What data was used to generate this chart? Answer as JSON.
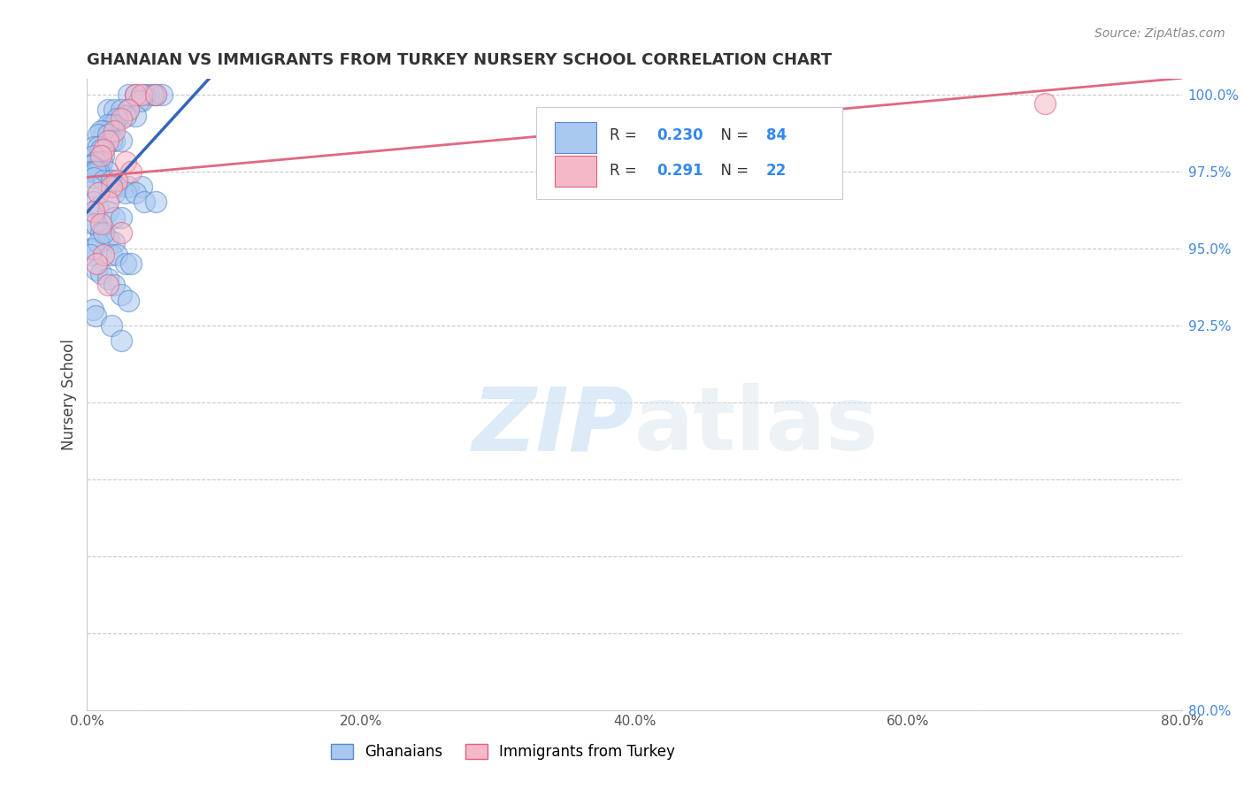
{
  "title": "GHANAIAN VS IMMIGRANTS FROM TURKEY NURSERY SCHOOL CORRELATION CHART",
  "source_text": "Source: ZipAtlas.com",
  "ylabel": "Nursery School",
  "xlim": [
    0.0,
    80.0
  ],
  "ylim": [
    80.0,
    100.5
  ],
  "xticks": [
    0.0,
    20.0,
    40.0,
    60.0,
    80.0
  ],
  "yticks": [
    80.0,
    82.5,
    85.0,
    87.5,
    90.0,
    92.5,
    95.0,
    97.5,
    100.0
  ],
  "ytick_labels_right": [
    "80.0%",
    "",
    "",
    "",
    "",
    "92.5%",
    "95.0%",
    "97.5%",
    "100.0%"
  ],
  "xtick_labels": [
    "0.0%",
    "20.0%",
    "40.0%",
    "60.0%",
    "80.0%"
  ],
  "blue_color": "#a8c8f0",
  "pink_color": "#f5b8c8",
  "blue_edge_color": "#5588cc",
  "pink_edge_color": "#e06080",
  "blue_line_color": "#3366bb",
  "pink_line_color": "#e06880",
  "legend_R_blue": "0.230",
  "legend_N_blue": "84",
  "legend_R_pink": "0.291",
  "legend_N_pink": "22",
  "legend_label_blue": "Ghanaians",
  "legend_label_pink": "Immigrants from Turkey",
  "watermark_zip": "ZIP",
  "watermark_atlas": "atlas",
  "blue_x": [
    3.0,
    3.5,
    4.5,
    5.0,
    5.5,
    4.2,
    4.8,
    4.0,
    3.8,
    1.5,
    2.0,
    2.5,
    3.0,
    3.5,
    2.8,
    2.2,
    1.8,
    2.0,
    1.5,
    1.2,
    1.0,
    0.8,
    1.5,
    2.0,
    1.8,
    2.5,
    0.5,
    0.8,
    1.0,
    1.2,
    0.5,
    0.7,
    0.9,
    1.1,
    0.6,
    0.4,
    0.3,
    0.2,
    0.5,
    1.0,
    1.5,
    0.8,
    0.6,
    0.5,
    1.2,
    1.8,
    2.2,
    3.0,
    4.0,
    0.3,
    2.0,
    2.8,
    3.5,
    4.2,
    5.0,
    0.5,
    0.8,
    1.5,
    2.0,
    2.5,
    0.4,
    0.6,
    1.0,
    1.5,
    2.0,
    0.3,
    0.5,
    0.8,
    1.2,
    0.2,
    1.8,
    2.2,
    2.8,
    3.2,
    0.7,
    1.0,
    1.5,
    2.0,
    2.5,
    3.0,
    0.4,
    0.6,
    1.8,
    2.5
  ],
  "blue_y": [
    100.0,
    100.0,
    100.0,
    100.0,
    100.0,
    100.0,
    100.0,
    99.8,
    99.8,
    99.5,
    99.5,
    99.5,
    99.5,
    99.3,
    99.3,
    99.2,
    99.0,
    99.0,
    99.0,
    98.8,
    98.8,
    98.7,
    98.7,
    98.5,
    98.5,
    98.5,
    98.3,
    98.3,
    98.2,
    98.0,
    98.0,
    97.8,
    97.8,
    97.8,
    97.8,
    97.7,
    97.7,
    97.5,
    97.5,
    97.5,
    97.5,
    97.5,
    97.5,
    97.3,
    97.2,
    97.2,
    97.0,
    97.0,
    97.0,
    97.0,
    96.8,
    96.8,
    96.8,
    96.5,
    96.5,
    96.5,
    96.3,
    96.2,
    96.0,
    96.0,
    95.8,
    95.8,
    95.5,
    95.3,
    95.2,
    95.0,
    95.0,
    95.2,
    95.5,
    94.8,
    94.8,
    94.8,
    94.5,
    94.5,
    94.3,
    94.2,
    94.0,
    93.8,
    93.5,
    93.3,
    93.0,
    92.8,
    92.5,
    92.0
  ],
  "pink_x": [
    3.5,
    4.0,
    5.0,
    3.0,
    2.5,
    2.0,
    1.5,
    1.2,
    1.0,
    2.8,
    3.2,
    2.2,
    1.8,
    0.8,
    1.5,
    0.5,
    1.0,
    2.5,
    1.2,
    0.7,
    1.5,
    70.0
  ],
  "pink_y": [
    100.0,
    100.0,
    100.0,
    99.5,
    99.2,
    98.8,
    98.5,
    98.2,
    98.0,
    97.8,
    97.5,
    97.2,
    97.0,
    96.8,
    96.5,
    96.2,
    95.8,
    95.5,
    94.8,
    94.5,
    93.8,
    99.7
  ]
}
